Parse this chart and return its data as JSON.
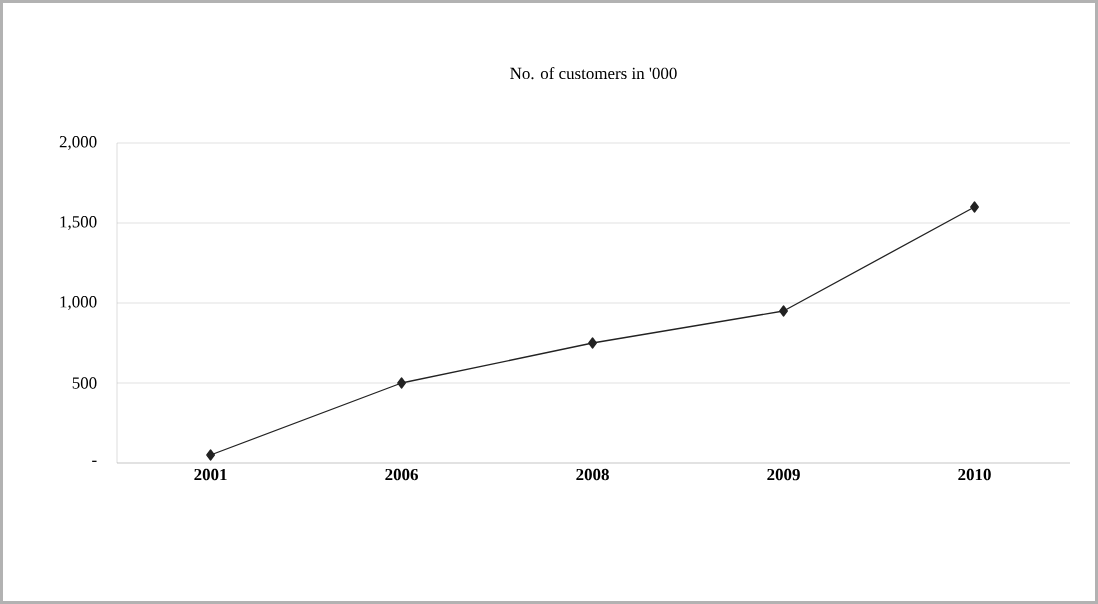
{
  "chart_data": {
    "type": "line",
    "title": "No. of customers in '000",
    "categories": [
      "2001",
      "2006",
      "2008",
      "2009",
      "2010"
    ],
    "series": [
      {
        "color": "#222222",
        "values": [
          50,
          500,
          750,
          950,
          1600
        ]
      }
    ],
    "ylim": [
      0,
      2000
    ],
    "yticks": [
      {
        "value": 0,
        "label": "-"
      },
      {
        "value": 500,
        "label": "500"
      },
      {
        "value": 1000,
        "label": "1,000"
      },
      {
        "value": 1500,
        "label": "1,500"
      },
      {
        "value": 2000,
        "label": "2,000"
      }
    ],
    "grid": "y",
    "marker": "diamond",
    "line_style": "solid"
  }
}
